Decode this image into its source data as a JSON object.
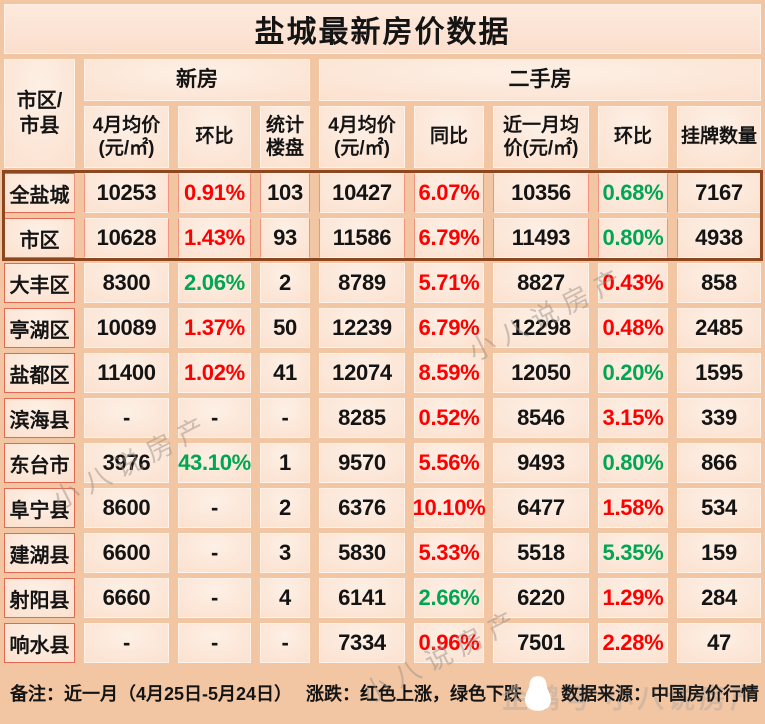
{
  "chart_data": {
    "type": "table",
    "title": "盐城最新房价数据",
    "corner_label": "市区/\n市县",
    "groups": {
      "new": "新房",
      "used": "二手房"
    },
    "columns": [
      "4月均价\n(元/㎡)",
      "环比",
      "统计\n楼盘",
      "4月均价\n(元/㎡)",
      "同比",
      "近一月均\n价(元/㎡)",
      "环比",
      "挂牌数量"
    ],
    "rows": [
      {
        "label": "全盐城",
        "summary": true,
        "cells": [
          {
            "v": "10253"
          },
          {
            "v": "0.91%",
            "c": "up"
          },
          {
            "v": "103"
          },
          {
            "v": "10427"
          },
          {
            "v": "6.07%",
            "c": "up"
          },
          {
            "v": "10356"
          },
          {
            "v": "0.68%",
            "c": "down"
          },
          {
            "v": "7167"
          }
        ]
      },
      {
        "label": "市区",
        "summary": true,
        "cells": [
          {
            "v": "10628"
          },
          {
            "v": "1.43%",
            "c": "up"
          },
          {
            "v": "93"
          },
          {
            "v": "11586"
          },
          {
            "v": "6.79%",
            "c": "up"
          },
          {
            "v": "11493"
          },
          {
            "v": "0.80%",
            "c": "down"
          },
          {
            "v": "4938"
          }
        ]
      },
      {
        "label": "大丰区",
        "cells": [
          {
            "v": "8300"
          },
          {
            "v": "2.06%",
            "c": "down"
          },
          {
            "v": "2"
          },
          {
            "v": "8789"
          },
          {
            "v": "5.71%",
            "c": "up"
          },
          {
            "v": "8827"
          },
          {
            "v": "0.43%",
            "c": "up"
          },
          {
            "v": "858"
          }
        ]
      },
      {
        "label": "亭湖区",
        "cells": [
          {
            "v": "10089"
          },
          {
            "v": "1.37%",
            "c": "up"
          },
          {
            "v": "50"
          },
          {
            "v": "12239"
          },
          {
            "v": "6.79%",
            "c": "up"
          },
          {
            "v": "12298"
          },
          {
            "v": "0.48%",
            "c": "up"
          },
          {
            "v": "2485"
          }
        ]
      },
      {
        "label": "盐都区",
        "cells": [
          {
            "v": "11400"
          },
          {
            "v": "1.02%",
            "c": "up"
          },
          {
            "v": "41"
          },
          {
            "v": "12074"
          },
          {
            "v": "8.59%",
            "c": "up"
          },
          {
            "v": "12050"
          },
          {
            "v": "0.20%",
            "c": "down"
          },
          {
            "v": "1595"
          }
        ]
      },
      {
        "label": "滨海县",
        "cells": [
          {
            "v": "-"
          },
          {
            "v": "-"
          },
          {
            "v": "-"
          },
          {
            "v": "8285"
          },
          {
            "v": "0.52%",
            "c": "up"
          },
          {
            "v": "8546"
          },
          {
            "v": "3.15%",
            "c": "up"
          },
          {
            "v": "339"
          }
        ]
      },
      {
        "label": "东台市",
        "cells": [
          {
            "v": "3976"
          },
          {
            "v": "43.10%",
            "c": "down"
          },
          {
            "v": "1"
          },
          {
            "v": "9570"
          },
          {
            "v": "5.56%",
            "c": "up"
          },
          {
            "v": "9493"
          },
          {
            "v": "0.80%",
            "c": "down"
          },
          {
            "v": "866"
          }
        ]
      },
      {
        "label": "阜宁县",
        "cells": [
          {
            "v": "8600"
          },
          {
            "v": "-"
          },
          {
            "v": "2"
          },
          {
            "v": "6376"
          },
          {
            "v": "10.10%",
            "c": "up"
          },
          {
            "v": "6477"
          },
          {
            "v": "1.58%",
            "c": "up"
          },
          {
            "v": "534"
          }
        ]
      },
      {
        "label": "建湖县",
        "cells": [
          {
            "v": "6600"
          },
          {
            "v": "-"
          },
          {
            "v": "3"
          },
          {
            "v": "5830"
          },
          {
            "v": "5.33%",
            "c": "up"
          },
          {
            "v": "5518"
          },
          {
            "v": "5.35%",
            "c": "down"
          },
          {
            "v": "159"
          }
        ]
      },
      {
        "label": "射阳县",
        "cells": [
          {
            "v": "6660"
          },
          {
            "v": "-"
          },
          {
            "v": "4"
          },
          {
            "v": "6141"
          },
          {
            "v": "2.66%",
            "c": "down"
          },
          {
            "v": "6220"
          },
          {
            "v": "1.29%",
            "c": "up"
          },
          {
            "v": "284"
          }
        ]
      },
      {
        "label": "响水县",
        "cells": [
          {
            "v": "-"
          },
          {
            "v": "-"
          },
          {
            "v": "-"
          },
          {
            "v": "7334"
          },
          {
            "v": "0.96%",
            "c": "up"
          },
          {
            "v": "7501"
          },
          {
            "v": "2.28%",
            "c": "up"
          },
          {
            "v": "47"
          }
        ]
      }
    ],
    "legend_note": "涨跌：红色上涨，绿色下跌"
  },
  "footer": {
    "note": "备注：近一月（4月25日-5月24日）　 涨跌：红色上涨，绿色下跌",
    "source": "数据来源：中国房价行情"
  },
  "watermarks": {
    "diagonal": "小八说房产",
    "footer": "企鹅号 小八说房产"
  },
  "colors": {
    "up_red": "#fe0000",
    "down_green": "#00a651",
    "summary_border": "#8c4721",
    "page_bg": "#f3c6a3"
  }
}
